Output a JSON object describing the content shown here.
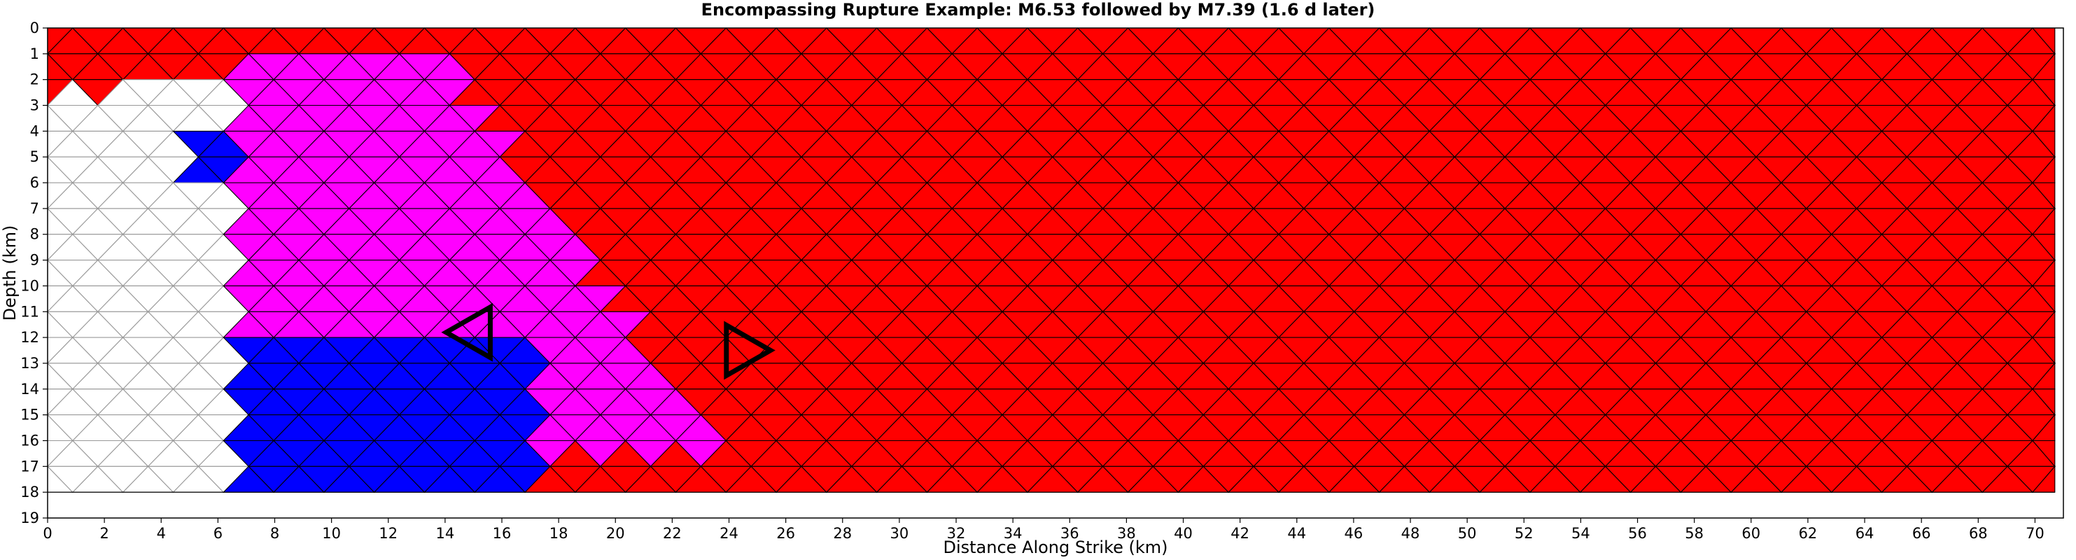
{
  "chart_data": {
    "type": "heatmap",
    "title": "Encompassing Rupture Example: M6.53 followed by M7.39 (1.6 d later)",
    "xlabel": "Distance Along Strike (km)",
    "ylabel": "Depth (km)",
    "xlim": [
      0,
      71
    ],
    "ylim": [
      19,
      0
    ],
    "y_inverted": true,
    "x_ticks": [
      "0",
      "2",
      "4",
      "6",
      "8",
      "10",
      "12",
      "14",
      "16",
      "18",
      "20",
      "22",
      "24",
      "26",
      "28",
      "30",
      "32",
      "34",
      "36",
      "38",
      "40",
      "42",
      "44",
      "46",
      "48",
      "50",
      "52",
      "54",
      "56",
      "58",
      "60",
      "62",
      "64",
      "66",
      "68",
      "70"
    ],
    "y_ticks": [
      "0",
      "1",
      "2",
      "3",
      "4",
      "5",
      "6",
      "7",
      "8",
      "9",
      "10",
      "11",
      "12",
      "13",
      "14",
      "15",
      "16",
      "17",
      "18",
      "19"
    ],
    "grid": false,
    "mesh": {
      "element": "triangle",
      "columns_km": 1.77,
      "rows_km": 1.0,
      "fault_depth_km": 18
    },
    "colors": {
      "unruptured": "#ffffff",
      "second_event": "#ff0000",
      "both_events": "#ff00ff",
      "first_event": "#0000ff"
    },
    "regions": [
      {
        "category": "both_events",
        "x_km": [
          7.0,
          23.5
        ],
        "depth_km": [
          1,
          16.5
        ]
      },
      {
        "category": "first_event",
        "x_km": [
          7.0,
          17.7
        ],
        "depth_km": [
          12.0,
          18.0
        ]
      },
      {
        "category": "first_event",
        "x_km": [
          5.3,
          7.0
        ],
        "depth_km": [
          4.0,
          6.0
        ]
      },
      {
        "category": "unruptured",
        "x_km": [
          0.0,
          7.0
        ],
        "depth_km": [
          2.0,
          18.0
        ]
      }
    ],
    "hypocenters": [
      {
        "event": "first",
        "x_km": 15.0,
        "depth_km": 11.8,
        "orientation": "left"
      },
      {
        "event": "second",
        "x_km": 24.5,
        "depth_km": 12.5,
        "orientation": "right"
      }
    ]
  }
}
